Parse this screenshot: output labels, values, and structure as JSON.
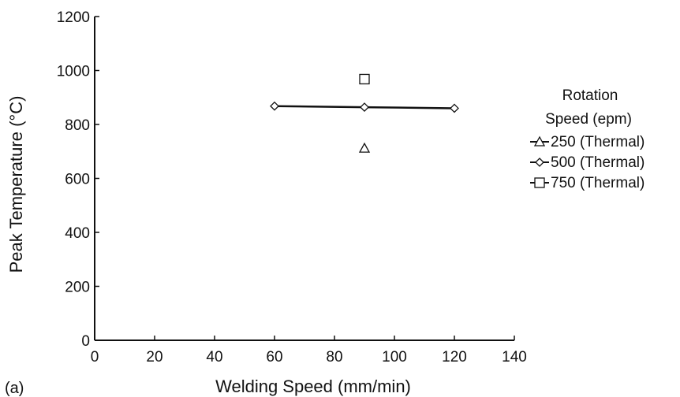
{
  "panel_label": "(a)",
  "chart_data": {
    "type": "scatter",
    "xlabel": "Welding Speed (mm/min)",
    "ylabel": "Peak Temperature (°C)",
    "xlim": [
      0,
      140
    ],
    "ylim": [
      0,
      1200
    ],
    "x_ticks": [
      "0",
      "20",
      "40",
      "60",
      "80",
      "100",
      "120",
      "140"
    ],
    "y_ticks": [
      "0",
      "200",
      "400",
      "600",
      "800",
      "1000",
      "1200"
    ],
    "grid": false,
    "legend": {
      "title_lines": [
        "Rotation",
        "Speed (epm)"
      ],
      "placement": "right"
    },
    "series": [
      {
        "name": "250 (Thermal)",
        "marker": "triangle",
        "line": false,
        "points": [
          {
            "x": 90,
            "y": 712
          }
        ]
      },
      {
        "name": "500 (Thermal)",
        "marker": "diamond",
        "line": true,
        "points": [
          {
            "x": 60,
            "y": 868
          },
          {
            "x": 90,
            "y": 864
          },
          {
            "x": 120,
            "y": 860
          }
        ]
      },
      {
        "name": "750 (Thermal)",
        "marker": "square",
        "line": false,
        "points": [
          {
            "x": 90,
            "y": 968
          }
        ]
      }
    ]
  }
}
